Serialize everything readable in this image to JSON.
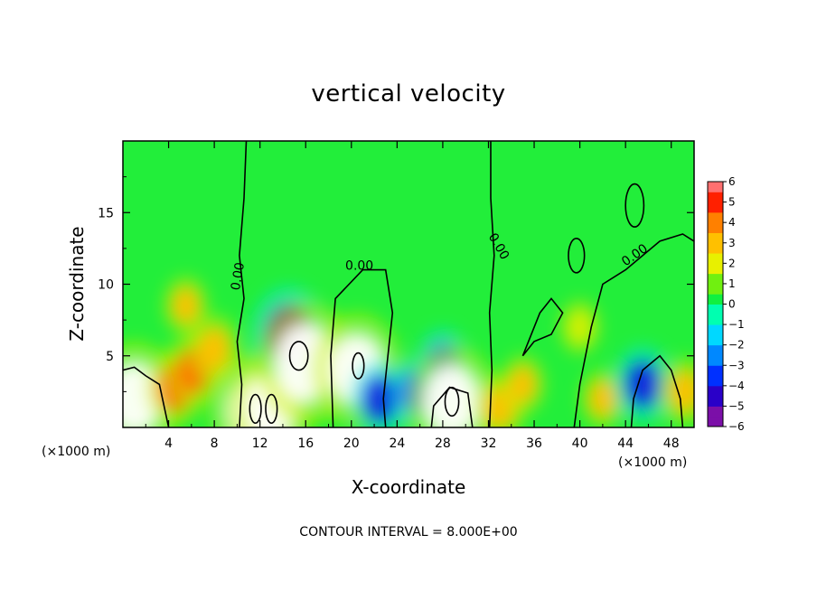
{
  "chart_data": {
    "type": "heatmap",
    "title": "vertical velocity",
    "xlabel": "X-coordinate",
    "ylabel": "Z-coordinate",
    "x_unit_left": "(×1000 m)",
    "x_unit_right": "(×1000 m)",
    "xlim": [
      0,
      50
    ],
    "ylim": [
      0,
      20
    ],
    "x_ticks": [
      4,
      8,
      12,
      16,
      20,
      24,
      28,
      32,
      36,
      40,
      44,
      48
    ],
    "y_ticks": [
      5,
      10,
      15
    ],
    "colorbar": {
      "ticks": [
        6,
        5,
        4,
        3,
        2,
        1,
        0,
        -1,
        -2,
        -3,
        -4,
        -5,
        -6
      ],
      "range": [
        -6,
        6
      ],
      "colors": [
        "#7b0fa8",
        "#2a00c8",
        "#0030ff",
        "#0088ff",
        "#00d8ff",
        "#00ffb0",
        "#10f040",
        "#70f010",
        "#e8f000",
        "#ffc000",
        "#ff8000",
        "#ff2000",
        "#ff7070"
      ]
    },
    "contour_labels": [
      "0.00",
      "0.00",
      "0.00",
      "0.00"
    ],
    "features": [
      {
        "x": 1.0,
        "z": 2.0,
        "w": 8
      },
      {
        "x": 4.6,
        "z": 2.8,
        "w": 4
      },
      {
        "x": 6.2,
        "z": 4.0,
        "w": 3.5
      },
      {
        "x": 5.5,
        "z": 8.5,
        "w": 2
      },
      {
        "x": 8.0,
        "z": 5.5,
        "w": 3
      },
      {
        "x": 11.0,
        "z": 1.5,
        "w": -4
      },
      {
        "x": 11.5,
        "z": 1.2,
        "w": 8
      },
      {
        "x": 13.0,
        "z": 1.4,
        "w": 7
      },
      {
        "x": 14.5,
        "z": 6.5,
        "w": -6
      },
      {
        "x": 16.0,
        "z": 4.5,
        "w": 9
      },
      {
        "x": 20.5,
        "z": 4.0,
        "w": 8
      },
      {
        "x": 22.5,
        "z": 2.0,
        "w": -4
      },
      {
        "x": 25.5,
        "z": 2.5,
        "w": -3
      },
      {
        "x": 28.0,
        "z": 4.5,
        "w": -3
      },
      {
        "x": 28.8,
        "z": 1.8,
        "w": 8
      },
      {
        "x": 33.0,
        "z": 1.4,
        "w": 3
      },
      {
        "x": 35.0,
        "z": 3.0,
        "w": 2
      },
      {
        "x": 40.0,
        "z": 7.0,
        "w": 1.5
      },
      {
        "x": 42.0,
        "z": 2.0,
        "w": 2
      },
      {
        "x": 45.5,
        "z": 3.0,
        "w": -4
      },
      {
        "x": 49.2,
        "z": 2.5,
        "w": 3
      }
    ]
  },
  "footer": {
    "contour_interval": "CONTOUR INTERVAL = 8.000E+00"
  }
}
